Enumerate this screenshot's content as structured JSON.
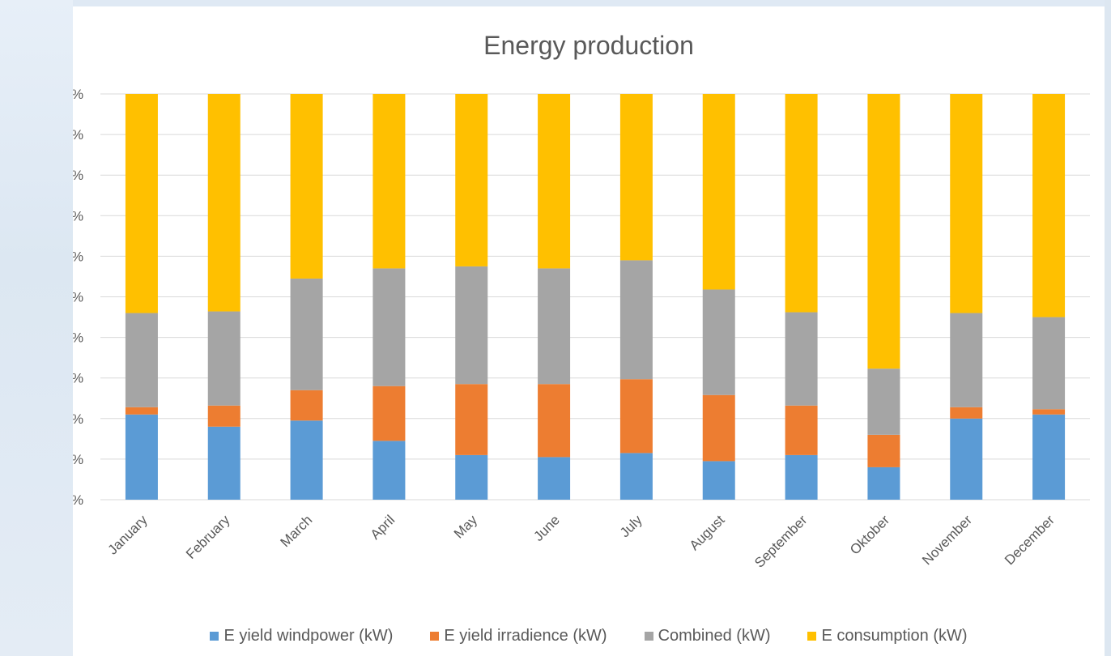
{
  "chart_data": {
    "type": "bar",
    "stacked": "percent",
    "title": "Energy production",
    "xlabel": "",
    "ylabel": "",
    "ylim": [
      0,
      100
    ],
    "y_ticks": [
      "%",
      "%",
      "%",
      "%",
      "%",
      "%",
      "%",
      "%",
      "%",
      "%",
      "%"
    ],
    "grid": true,
    "legend_position": "bottom",
    "categories": [
      "January",
      "February",
      "March",
      "April",
      "May",
      "June",
      "July",
      "August",
      "September",
      "Oktober",
      "November",
      "December"
    ],
    "series": [
      {
        "name": "E yield windpower (kW)",
        "color": "#5b9bd5",
        "values": [
          21,
          18,
          19.5,
          14.5,
          11,
          10.5,
          11.5,
          9.5,
          11,
          8,
          20,
          21
        ]
      },
      {
        "name": "E yield irradience (kW)",
        "color": "#ed7d31",
        "values": [
          1.8,
          5.2,
          7.5,
          13.5,
          17.5,
          18,
          18.2,
          16.3,
          12.2,
          8,
          2.8,
          1.3
        ]
      },
      {
        "name": "Combined (kW)",
        "color": "#a5a5a5",
        "values": [
          23.2,
          23.2,
          27.5,
          29,
          29,
          28.5,
          29.3,
          26,
          23,
          16.3,
          23.2,
          22.7
        ]
      },
      {
        "name": "E consumption (kW)",
        "color": "#ffc000",
        "values": [
          54,
          53.6,
          45.5,
          43,
          42.5,
          43,
          41,
          48.2,
          53.8,
          67.7,
          54,
          55
        ]
      }
    ]
  }
}
